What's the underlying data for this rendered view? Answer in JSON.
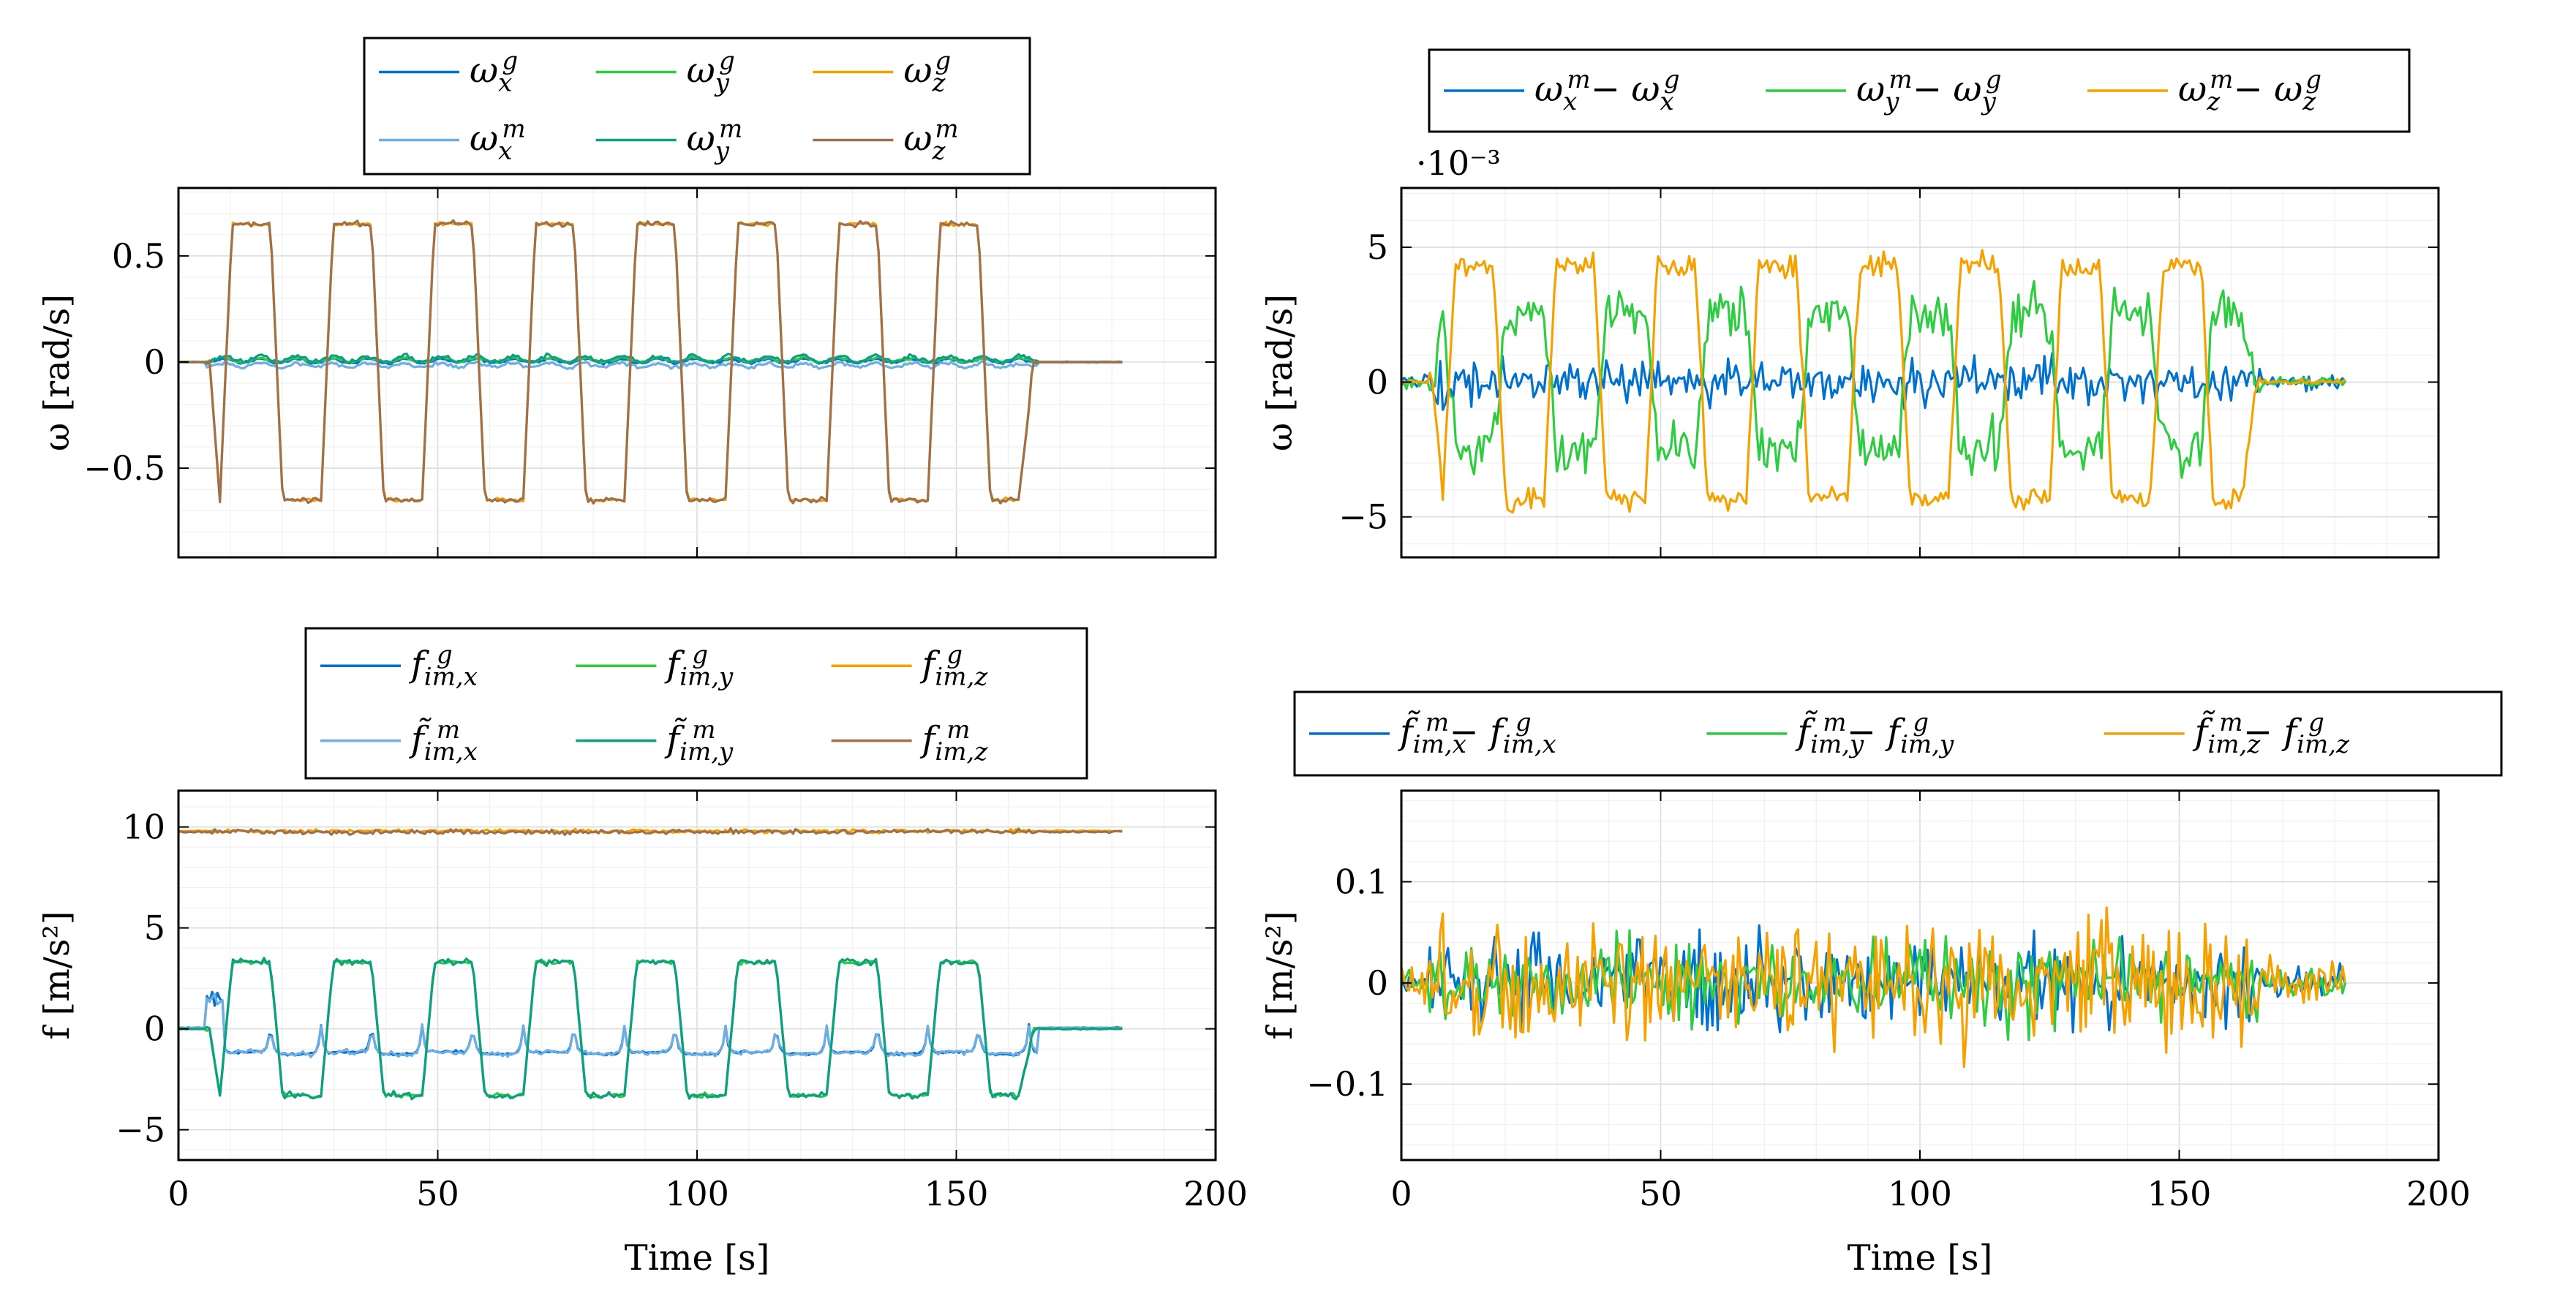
{
  "colors": {
    "blue": "#0072CE",
    "green": "#2ECC40",
    "orange": "#F5A100",
    "lightblue": "#6FAEE3",
    "teal": "#0E9E82",
    "brown": "#A0704A"
  },
  "chart_data": [
    {
      "id": "tl",
      "type": "line",
      "ylabel": "ω [rad/s]",
      "xlabel": "",
      "xlim": [
        0,
        200
      ],
      "ylim": [
        -0.92,
        0.82
      ],
      "xticks": [
        0,
        50,
        100,
        150,
        200
      ],
      "show_xtick_labels": false,
      "yticks": [
        -0.5,
        0,
        0.5
      ],
      "ytick_labels": [
        "−0.5",
        "0",
        "0.5"
      ],
      "grid": true,
      "legend_position": "top-center",
      "legend_columns": 3,
      "series": [
        {
          "name": "ω_x^g",
          "color": "blue",
          "gen": {
            "kind": "small",
            "amp": 0.02,
            "offset": 0.005,
            "noise": 0.006,
            "seed": 11
          }
        },
        {
          "name": "ω_y^g",
          "color": "green",
          "gen": {
            "kind": "small",
            "amp": 0.02,
            "offset": 0.01,
            "noise": 0.006,
            "seed": 12
          }
        },
        {
          "name": "ω_z^g",
          "color": "orange",
          "gen": {
            "kind": "square",
            "amp": 0.65,
            "noise": 0.008,
            "seed": 13
          }
        },
        {
          "name": "ω_x^m",
          "color": "lightblue",
          "gen": {
            "kind": "small",
            "amp": 0.02,
            "offset": -0.015,
            "noise": 0.008,
            "seed": 14
          }
        },
        {
          "name": "ω_y^m",
          "color": "teal",
          "gen": {
            "kind": "small",
            "amp": 0.03,
            "offset": 0.015,
            "noise": 0.01,
            "seed": 15
          }
        },
        {
          "name": "ω_z^m",
          "color": "brown",
          "gen": {
            "kind": "square",
            "amp": 0.65,
            "noise": 0.012,
            "seed": 16
          }
        }
      ]
    },
    {
      "id": "tr",
      "type": "line",
      "ylabel": "ω [rad/s]",
      "xlabel": "",
      "exponent_label": "·10⁻³",
      "xlim": [
        0,
        200
      ],
      "ylim": [
        -6.5,
        7.2
      ],
      "xticks": [
        0,
        50,
        100,
        150,
        200
      ],
      "show_xtick_labels": false,
      "yticks": [
        -5,
        0,
        5
      ],
      "ytick_labels": [
        "−5",
        "0",
        "5"
      ],
      "grid": true,
      "legend_position": "top-center",
      "legend_columns": 3,
      "series": [
        {
          "name": "ω_x^m − ω_x^g",
          "color": "blue",
          "gen": {
            "kind": "noise",
            "noise": 0.75,
            "seed": 21
          }
        },
        {
          "name": "ω_y^m − ω_y^g",
          "color": "green",
          "gen": {
            "kind": "square",
            "amp": -2.5,
            "noise": 0.9,
            "seed": 22
          }
        },
        {
          "name": "ω_z^m − ω_z^g",
          "color": "orange",
          "gen": {
            "kind": "square",
            "amp": 4.3,
            "noise": 0.45,
            "seed": 23
          }
        }
      ]
    },
    {
      "id": "bl",
      "type": "line",
      "ylabel": "f [m/s²]",
      "xlabel": "Time [s]",
      "xlim": [
        0,
        200
      ],
      "ylim": [
        -6.5,
        11.8
      ],
      "xticks": [
        0,
        50,
        100,
        150,
        200
      ],
      "xtick_labels": [
        "0",
        "50",
        "100",
        "150",
        "200"
      ],
      "show_xtick_labels": true,
      "yticks": [
        -5,
        0,
        5,
        10
      ],
      "ytick_labels": [
        "−5",
        "0",
        "5",
        "10"
      ],
      "grid": true,
      "legend_position": "top-center",
      "legend_columns": 3,
      "series": [
        {
          "name": "f_im,x^g",
          "color": "blue",
          "gen": {
            "kind": "accx",
            "noise": 0.06,
            "seed": 31
          }
        },
        {
          "name": "f_im,y^g",
          "color": "green",
          "gen": {
            "kind": "square",
            "amp": 3.3,
            "noise": 0.1,
            "seed": 32
          }
        },
        {
          "name": "f_im,z^g",
          "color": "orange",
          "gen": {
            "kind": "const",
            "value": 9.8,
            "noise": 0.08,
            "seed": 33
          }
        },
        {
          "name": "f̃_im,x^m",
          "color": "lightblue",
          "gen": {
            "kind": "accx",
            "noise": 0.12,
            "seed": 34
          }
        },
        {
          "name": "f̃_im,y^m",
          "color": "teal",
          "gen": {
            "kind": "square",
            "amp": 3.3,
            "noise": 0.15,
            "seed": 35
          }
        },
        {
          "name": "f_im,z^m",
          "color": "brown",
          "gen": {
            "kind": "const",
            "value": 9.75,
            "noise": 0.12,
            "seed": 36
          }
        }
      ]
    },
    {
      "id": "br",
      "type": "line",
      "ylabel": "f [m/s²]",
      "xlabel": "Time [s]",
      "xlim": [
        0,
        200
      ],
      "ylim": [
        -0.175,
        0.19
      ],
      "xticks": [
        0,
        50,
        100,
        150,
        200
      ],
      "xtick_labels": [
        "0",
        "50",
        "100",
        "150",
        "200"
      ],
      "show_xtick_labels": true,
      "yticks": [
        -0.1,
        0,
        0.1
      ],
      "ytick_labels": [
        "−0.1",
        "0",
        "0.1"
      ],
      "grid": true,
      "legend_position": "top-center",
      "legend_columns": 3,
      "series": [
        {
          "name": "f̃_im,x^m − f_im,x^g",
          "color": "blue",
          "gen": {
            "kind": "noise",
            "noise": 0.04,
            "seed": 41
          }
        },
        {
          "name": "f̃_im,y^m − f_im,y^g",
          "color": "green",
          "gen": {
            "kind": "noise",
            "noise": 0.04,
            "seed": 42
          }
        },
        {
          "name": "f̃_im,z^m − f_im,z^g",
          "color": "orange",
          "gen": {
            "kind": "noise",
            "noise": 0.055,
            "seed": 43
          }
        }
      ]
    }
  ]
}
